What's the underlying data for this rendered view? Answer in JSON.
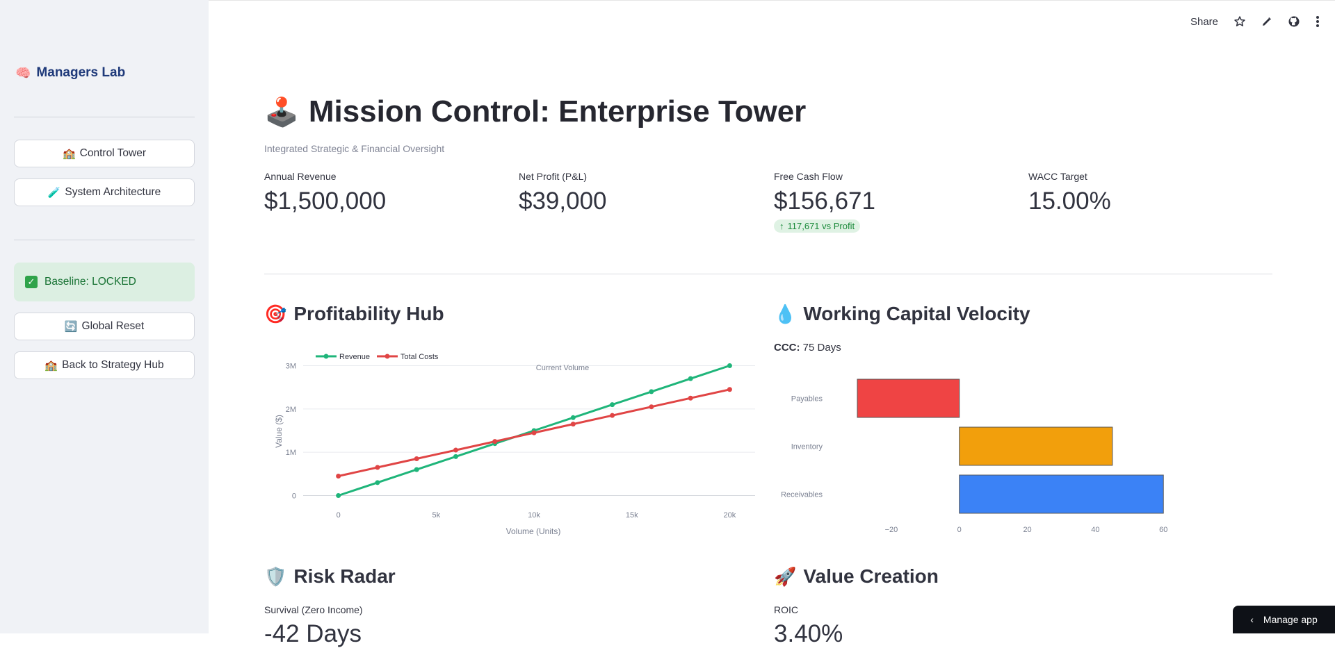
{
  "sidebar": {
    "brand": "Managers Lab",
    "brand_icon": "🧠",
    "nav": [
      {
        "icon": "🏫",
        "label": "Control Tower"
      },
      {
        "icon": "🧪",
        "label": "System Architecture"
      }
    ],
    "status": "Baseline: LOCKED",
    "actions": [
      {
        "icon": "🔄",
        "label": "Global Reset"
      },
      {
        "icon": "🏫",
        "label": "Back to Strategy Hub"
      }
    ]
  },
  "toolbar": {
    "share": "Share"
  },
  "header": {
    "title_icon": "🕹️",
    "title": "Mission Control: Enterprise Tower",
    "subtitle": "Integrated Strategic & Financial Oversight"
  },
  "metrics": [
    {
      "label": "Annual Revenue",
      "value": "$1,500,000"
    },
    {
      "label": "Net Profit (P&L)",
      "value": "$39,000"
    },
    {
      "label": "Free Cash Flow",
      "value": "$156,671",
      "delta": "117,671 vs Profit"
    },
    {
      "label": "WACC Target",
      "value": "15.00%"
    }
  ],
  "sections": {
    "profit": {
      "icon": "🎯",
      "title": "Profitability Hub"
    },
    "wc": {
      "icon": "💧",
      "title": "Working Capital Velocity",
      "ccc_label": "CCC:",
      "ccc_value": "75 Days"
    },
    "risk": {
      "icon": "🛡️",
      "title": "Risk Radar",
      "label": "Survival (Zero Income)",
      "value": "-42 Days"
    },
    "value": {
      "icon": "🚀",
      "title": "Value Creation",
      "label": "ROIC",
      "value": "3.40%"
    }
  },
  "manage_app": "Manage app",
  "colors": {
    "revenue": "#1fb57a",
    "costs": "#e04545",
    "payables": "#ef4444",
    "inventory": "#f29f0c",
    "receivables": "#3b82f6"
  },
  "chart_data": [
    {
      "type": "line",
      "title": "",
      "xlabel": "Volume (Units)",
      "ylabel": "Value ($)",
      "annotation": "Current Volume",
      "xlim": [
        -1800,
        21300
      ],
      "ylim": [
        -200000,
        3200000
      ],
      "x_ticks": [
        {
          "v": 0,
          "t": "0"
        },
        {
          "v": 5000,
          "t": "5k"
        },
        {
          "v": 10000,
          "t": "10k"
        },
        {
          "v": 15000,
          "t": "15k"
        },
        {
          "v": 20000,
          "t": "20k"
        }
      ],
      "y_ticks": [
        {
          "v": 0,
          "t": "0"
        },
        {
          "v": 1000000,
          "t": "1M"
        },
        {
          "v": 2000000,
          "t": "2M"
        },
        {
          "v": 3000000,
          "t": "3M"
        }
      ],
      "x": [
        0,
        2000,
        4000,
        6000,
        8000,
        10000,
        12000,
        14000,
        16000,
        18000,
        20000
      ],
      "series": [
        {
          "name": "Revenue",
          "values": [
            0,
            300000,
            600000,
            900000,
            1200000,
            1500000,
            1800000,
            2100000,
            2400000,
            2700000,
            3000000
          ]
        },
        {
          "name": "Total Costs",
          "values": [
            450000,
            650000,
            850000,
            1050000,
            1250000,
            1450000,
            1650000,
            1850000,
            2050000,
            2250000,
            2450000
          ]
        }
      ]
    },
    {
      "type": "bar",
      "orientation": "horizontal",
      "categories": [
        "Receivables",
        "Inventory",
        "Payables"
      ],
      "values": [
        60,
        45,
        -30
      ],
      "xlim": [
        -30,
        62
      ],
      "x_ticks": [
        {
          "v": -20,
          "t": "−20"
        },
        {
          "v": 0,
          "t": "0"
        },
        {
          "v": 20,
          "t": "20"
        },
        {
          "v": 40,
          "t": "40"
        },
        {
          "v": 60,
          "t": "60"
        }
      ]
    }
  ]
}
